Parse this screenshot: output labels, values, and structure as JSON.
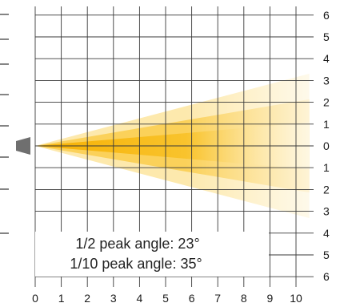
{
  "annotations": {
    "half_peak_label": "1/2 peak angle: 23°",
    "tenth_peak_label": "1/10 peak angle: 35°"
  },
  "chart_data": {
    "type": "diagram",
    "x_ticks": [
      "0",
      "1",
      "2",
      "3",
      "4",
      "5",
      "6",
      "7",
      "8",
      "9",
      "10"
    ],
    "y_ticks_upper": [
      "6",
      "5",
      "4",
      "3",
      "2",
      "1"
    ],
    "y_tick_center": "0",
    "y_ticks_lower": [
      "1",
      "2",
      "3",
      "4",
      "5",
      "6"
    ],
    "xlim": [
      0,
      10.5
    ],
    "ylim": [
      -6,
      6
    ],
    "grid": true,
    "beam": {
      "half_peak_angle_deg": 23,
      "tenth_peak_angle_deg": 35,
      "colors": {
        "core": "#f7b500",
        "half_peak": "#fbd15a",
        "tenth_peak": "#fde9ad",
        "fade_to": "#ffffff"
      }
    },
    "emitter_color": "#6f6f6f"
  }
}
